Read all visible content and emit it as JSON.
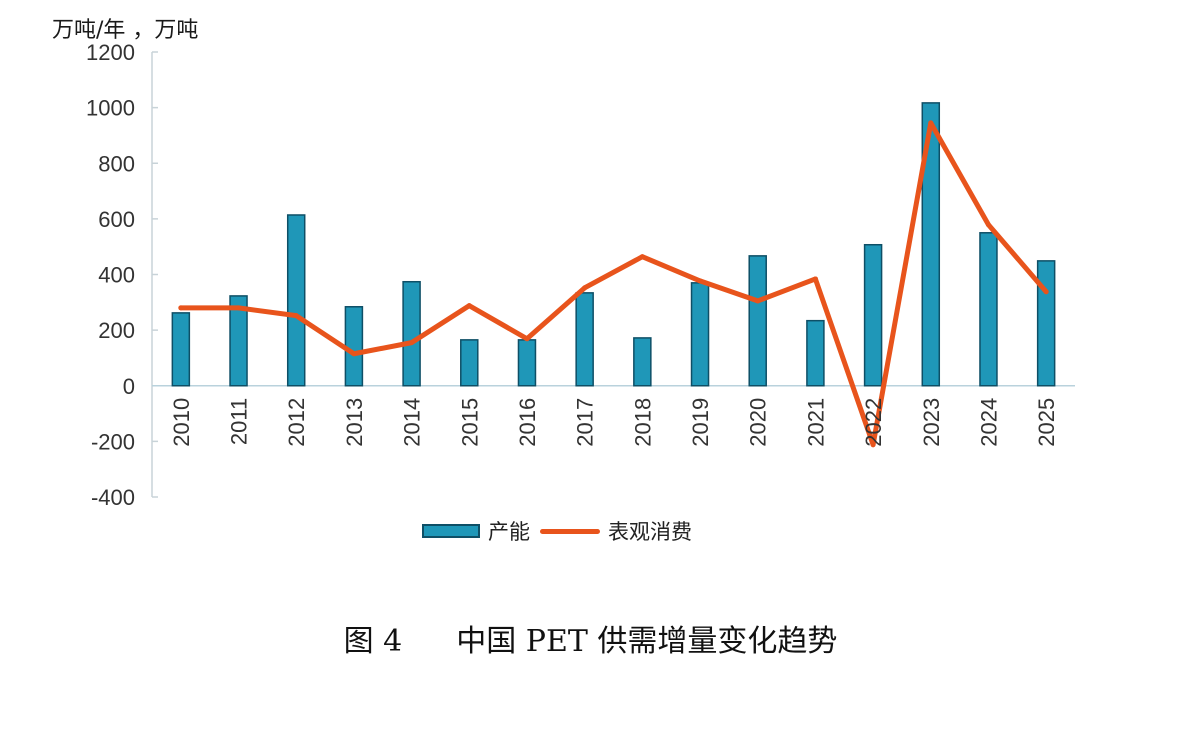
{
  "chart_data": {
    "type": "bar",
    "title": "中国 PET 供需增量变化趋势",
    "figure_label": "图 4",
    "ylabel": "万吨/年，万吨",
    "ylim": [
      -400,
      1200
    ],
    "yticks": [
      1200,
      1000,
      800,
      600,
      400,
      200,
      0,
      -200,
      -400
    ],
    "grid": false,
    "legend_position": "bottom",
    "categories": [
      "2010",
      "2011",
      "2012",
      "2013",
      "2014",
      "2015",
      "2016",
      "2017",
      "2018",
      "2019",
      "2020",
      "2021",
      "2022",
      "2023",
      "2024",
      "2025"
    ],
    "series": [
      {
        "name": "产能",
        "type": "bar",
        "color": "#1f97b8",
        "values": [
          262,
          323,
          614,
          284,
          374,
          165,
          165,
          334,
          172,
          370,
          467,
          234,
          507,
          1017,
          550,
          449
        ]
      },
      {
        "name": "表观消费",
        "type": "line",
        "color": "#e8541c",
        "values": [
          280,
          280,
          252,
          115,
          155,
          288,
          169,
          352,
          464,
          377,
          305,
          384,
          -212,
          945,
          579,
          338
        ]
      }
    ]
  },
  "labels": {
    "unit": "万吨/年 ，万吨",
    "caption_fig": "图 4",
    "caption_title": "中国 PET 供需增量变化趋势"
  }
}
